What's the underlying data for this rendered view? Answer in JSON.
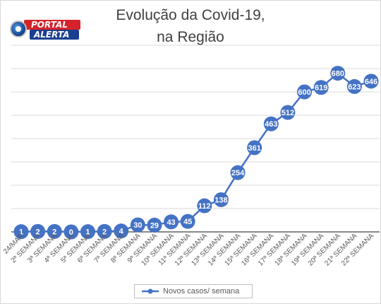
{
  "title_line1": "Evolução da Covid-19,",
  "title_line2": "na Região",
  "logo": {
    "top": "PORTAL",
    "bottom": "ALERTA"
  },
  "colors": {
    "series": "#4472c4",
    "grid": "#d9d9d9",
    "text": "#595959",
    "title": "#404040"
  },
  "chart_data": {
    "type": "line",
    "title": "Evolução da Covid-19, na Região",
    "categories": [
      "24/MAR",
      "2ª SEMANA",
      "3ª SEMANA",
      "4ª SEMANA",
      "5ª SEMANA",
      "6ª SEMANA",
      "7ª SEMANA",
      "8ª SEMANA",
      "9ª SEMANA",
      "10ª SEMANA",
      "11ª SEMANA",
      "12ª SEMANA",
      "13ª SEMANA",
      "14ª SEMANA",
      "15ª SEMANA",
      "16ª SEMANA",
      "17ª SEMANA",
      "18ª SEMANA",
      "19ª SEMANA",
      "20ª SEMANA",
      "21ª SEMANA",
      "22ª SEMANA"
    ],
    "series": [
      {
        "name": "Novos casos/ semana",
        "values": [
          1,
          2,
          2,
          0,
          1,
          2,
          4,
          30,
          29,
          43,
          45,
          112,
          138,
          254,
          361,
          463,
          512,
          600,
          619,
          680,
          623,
          646
        ]
      }
    ],
    "ylim": [
      0,
      800
    ],
    "grid": true,
    "data_labels": true,
    "legend": "bottom"
  }
}
